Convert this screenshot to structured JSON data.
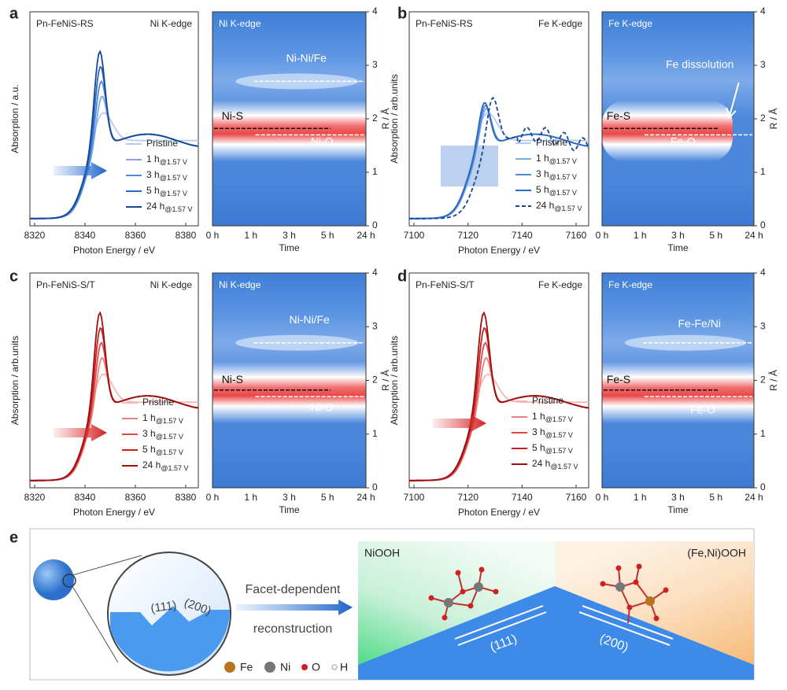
{
  "panels": [
    {
      "label": "a",
      "sample": "Pn-FeNiS-RS",
      "edge": "Ni K-edge",
      "y_label": "Absorption / a.u.",
      "x_label": "Photon Energy / eV",
      "x_ticks": [
        "8320",
        "8340",
        "8360",
        "8380"
      ],
      "legend": [
        {
          "main": "Pristine"
        },
        {
          "main": "1 h",
          "sub": "@1.57 V"
        },
        {
          "main": "3 h",
          "sub": "@1.57 V"
        },
        {
          "main": "5 h",
          "sub": "@1.57 V"
        },
        {
          "main": "24 h",
          "sub": "@1.57 V"
        }
      ],
      "map": {
        "edge": "Ni K-edge",
        "x_label": "Time",
        "x_ticks": [
          "0 h",
          "1 h",
          "3 h",
          "5 h",
          "24 h"
        ],
        "y_label": "R / Å",
        "y_ticks": [
          "0",
          "1",
          "2",
          "3",
          "4"
        ],
        "annotations": [
          "Ni-Ni/Fe",
          "Ni-S",
          "Ni-O"
        ]
      }
    },
    {
      "label": "b",
      "sample": "Pn-FeNiS-RS",
      "edge": "Fe K-edge",
      "y_label": "Absorption / arb.units",
      "x_label": "Photon Energy / eV",
      "x_ticks": [
        "7100",
        "7120",
        "7140",
        "7160"
      ],
      "legend": [
        {
          "main": "Pristine"
        },
        {
          "main": "1 h",
          "sub": "@1.57 V"
        },
        {
          "main": "3 h",
          "sub": "@1.57 V"
        },
        {
          "main": "5 h",
          "sub": "@1.57 V"
        },
        {
          "main": "24 h",
          "sub": "@1.57 V"
        }
      ],
      "map": {
        "edge": "Fe K-edge",
        "x_label": "Time",
        "x_ticks": [
          "0 h",
          "1 h",
          "3 h",
          "5 h",
          "24 h"
        ],
        "y_label": "R / Å",
        "y_ticks": [
          "0",
          "1",
          "2",
          "3",
          "4"
        ],
        "annotations": [
          "Fe dissolution",
          "Fe-S",
          "Fe-O"
        ]
      }
    },
    {
      "label": "c",
      "sample": "Pn-FeNiS-S/T",
      "edge": "Ni K-edge",
      "y_label": "Absorption / arb.units",
      "x_label": "Photon Energy / eV",
      "x_ticks": [
        "8320",
        "8340",
        "8360",
        "8380"
      ],
      "legend": [
        {
          "main": "Pristine"
        },
        {
          "main": "1 h",
          "sub": "@1.57 V"
        },
        {
          "main": "3 h",
          "sub": "@1.57 V"
        },
        {
          "main": "5 h",
          "sub": "@1.57 V"
        },
        {
          "main": "24 h",
          "sub": "@1.57 V"
        }
      ],
      "map": {
        "edge": "Ni K-edge",
        "x_label": "Time",
        "x_ticks": [
          "0 h",
          "1 h",
          "3 h",
          "5 h",
          "24 h"
        ],
        "y_label": "R / Å",
        "y_ticks": [
          "0",
          "1",
          "2",
          "3",
          "4"
        ],
        "annotations": [
          "Ni-Ni/Fe",
          "Ni-S",
          "Ni-O"
        ]
      }
    },
    {
      "label": "d",
      "sample": "Pn-FeNiS-S/T",
      "edge": "Fe K-edge",
      "y_label": "Absorption / arb.units",
      "x_label": "Photon Energy / eV",
      "x_ticks": [
        "7100",
        "7120",
        "7140",
        "7160"
      ],
      "legend": [
        {
          "main": "Pristine"
        },
        {
          "main": "1 h",
          "sub": "@1.57 V"
        },
        {
          "main": "3 h",
          "sub": "@1.57 V"
        },
        {
          "main": "5 h",
          "sub": "@1.57 V"
        },
        {
          "main": "24 h",
          "sub": "@1.57 V"
        }
      ],
      "map": {
        "edge": "Fe K-edge",
        "x_label": "Time",
        "x_ticks": [
          "0 h",
          "1 h",
          "3 h",
          "5 h",
          "24 h"
        ],
        "y_label": "R / Å",
        "y_ticks": [
          "0",
          "1",
          "2",
          "3",
          "4"
        ],
        "annotations": [
          "Fe-Fe/Ni",
          "Fe-S",
          "Fe-O"
        ]
      }
    }
  ],
  "panel_e": {
    "label": "e",
    "facet_a": "(111)",
    "facet_b": "(200)",
    "arrow_top": "Facet-dependent",
    "arrow_bottom": "reconstruction",
    "left_phase": "NiOOH",
    "right_phase": "(Fe,Ni)OOH",
    "slope_a": "(111)",
    "slope_b": "(200)",
    "legend": [
      "Fe",
      "Ni",
      "O",
      "H"
    ]
  }
}
